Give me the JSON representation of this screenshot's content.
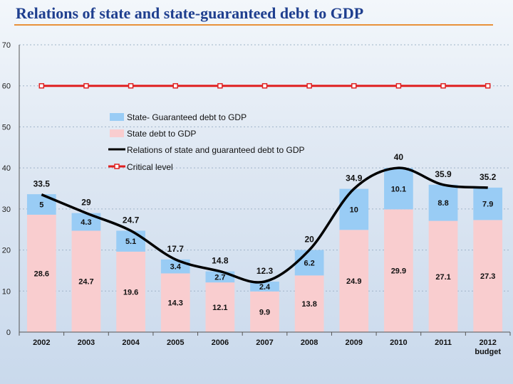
{
  "title": "Relations of state and state-guaranteed debt to GDP",
  "chart_data": {
    "type": "bar",
    "stacked": true,
    "categories": [
      "2002",
      "2003",
      "2004",
      "2005",
      "2006",
      "2007",
      "2008",
      "2009",
      "2010",
      "2011",
      "2012"
    ],
    "category_sublabels": [
      "",
      "",
      "",
      "",
      "",
      "",
      "",
      "",
      "",
      "",
      "budget"
    ],
    "series": [
      {
        "name": "State debt to GDP",
        "type": "bar",
        "color": "#f9cdcf",
        "values": [
          28.6,
          24.7,
          19.6,
          14.3,
          12.1,
          9.9,
          13.8,
          24.9,
          29.9,
          27.1,
          27.3
        ]
      },
      {
        "name": "State- Guaranteed debt to GDP",
        "type": "bar",
        "color": "#99ccf5",
        "values": [
          5,
          4.3,
          5.1,
          3.4,
          2.7,
          2.4,
          6.2,
          10,
          10.1,
          8.8,
          7.9
        ]
      },
      {
        "name": "Relations of state and guaranteed debt to GDP",
        "type": "line",
        "color": "#000000",
        "values": [
          33.5,
          29,
          24.7,
          17.7,
          14.8,
          12.3,
          20,
          34.9,
          40,
          35.9,
          35.2
        ]
      },
      {
        "name": "Critical level",
        "type": "line",
        "color": "#e02020",
        "values": [
          60,
          60,
          60,
          60,
          60,
          60,
          60,
          60,
          60,
          60,
          60
        ]
      }
    ],
    "total_labels": [
      "33.5",
      "29",
      "24.7",
      "17.7",
      "14.8",
      "12.3",
      "20",
      "34.9",
      "40",
      "35.9",
      "35.2"
    ],
    "state_labels": [
      "28.6",
      "24.7",
      "19.6",
      "14.3",
      "12.1",
      "9.9",
      "13.8",
      "24.9",
      "29.9",
      "27.1",
      "27.3"
    ],
    "guaranteed_labels": [
      "5",
      "4.3",
      "5.1",
      "3.4",
      "2.7",
      "2.4",
      "6.2",
      "10",
      "10.1",
      "8.8",
      "7.9"
    ],
    "legend": [
      "State- Guaranteed debt to GDP",
      "State debt to GDP",
      "Relations of state and guaranteed debt to GDP",
      "Critical level"
    ],
    "yticks": [
      "0",
      "10",
      "20",
      "30",
      "40",
      "50",
      "60",
      "70"
    ],
    "ylim": [
      0,
      70
    ],
    "grid": true,
    "xlabel": "",
    "ylabel": ""
  }
}
